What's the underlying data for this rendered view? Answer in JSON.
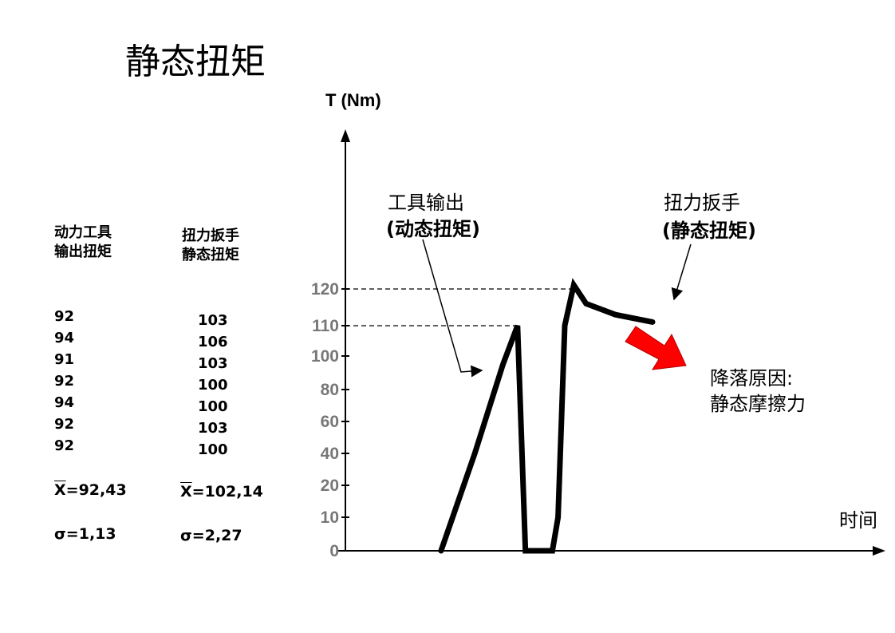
{
  "title": "静态扭矩",
  "table": {
    "left_col": {
      "header": [
        "动力工具",
        "输出扭矩"
      ],
      "values": [
        "92",
        "94",
        "91",
        "92",
        "94",
        "92",
        "92"
      ],
      "mean_symbol": "X",
      "mean_value": "=92,43",
      "sigma": "σ=1,13"
    },
    "right_col": {
      "header": [
        "扭力扳手",
        "静态扭矩"
      ],
      "values": [
        "103",
        "106",
        "103",
        "100",
        "100",
        "103",
        "100"
      ],
      "mean_symbol": "X",
      "mean_value": "=102,14",
      "sigma": "σ=2,27"
    }
  },
  "chart_data": {
    "type": "line",
    "ylabel": "T (Nm)",
    "xlabel": "时间",
    "yticks": [
      0,
      10,
      20,
      40,
      60,
      80,
      100,
      110,
      120
    ],
    "ylim": [
      0,
      160
    ],
    "reference_lines": [
      120,
      110
    ],
    "series": [
      {
        "points": [
          [
            0,
            0
          ],
          [
            3.0,
            40
          ],
          [
            5.5,
            95
          ],
          [
            6.8,
            110
          ],
          [
            7.5,
            0
          ],
          [
            9.9,
            0
          ],
          [
            10.4,
            10
          ],
          [
            11.0,
            110
          ],
          [
            11.8,
            121
          ],
          [
            12.9,
            116
          ],
          [
            15.5,
            113
          ],
          [
            18.8,
            111
          ]
        ]
      }
    ],
    "xlim": [
      -8.5,
      39.5
    ],
    "annotations": [
      {
        "lines": [
          "工具输出",
          "(动态扭矩)"
        ]
      },
      {
        "lines": [
          "扭力扳手",
          "(静态扭矩)"
        ]
      },
      {
        "lines": [
          "降落原因:",
          "静态摩擦力"
        ]
      }
    ],
    "colors": {
      "line": "#000000",
      "arrow_fill": "#ff0000",
      "tick_text": "#777777"
    }
  }
}
